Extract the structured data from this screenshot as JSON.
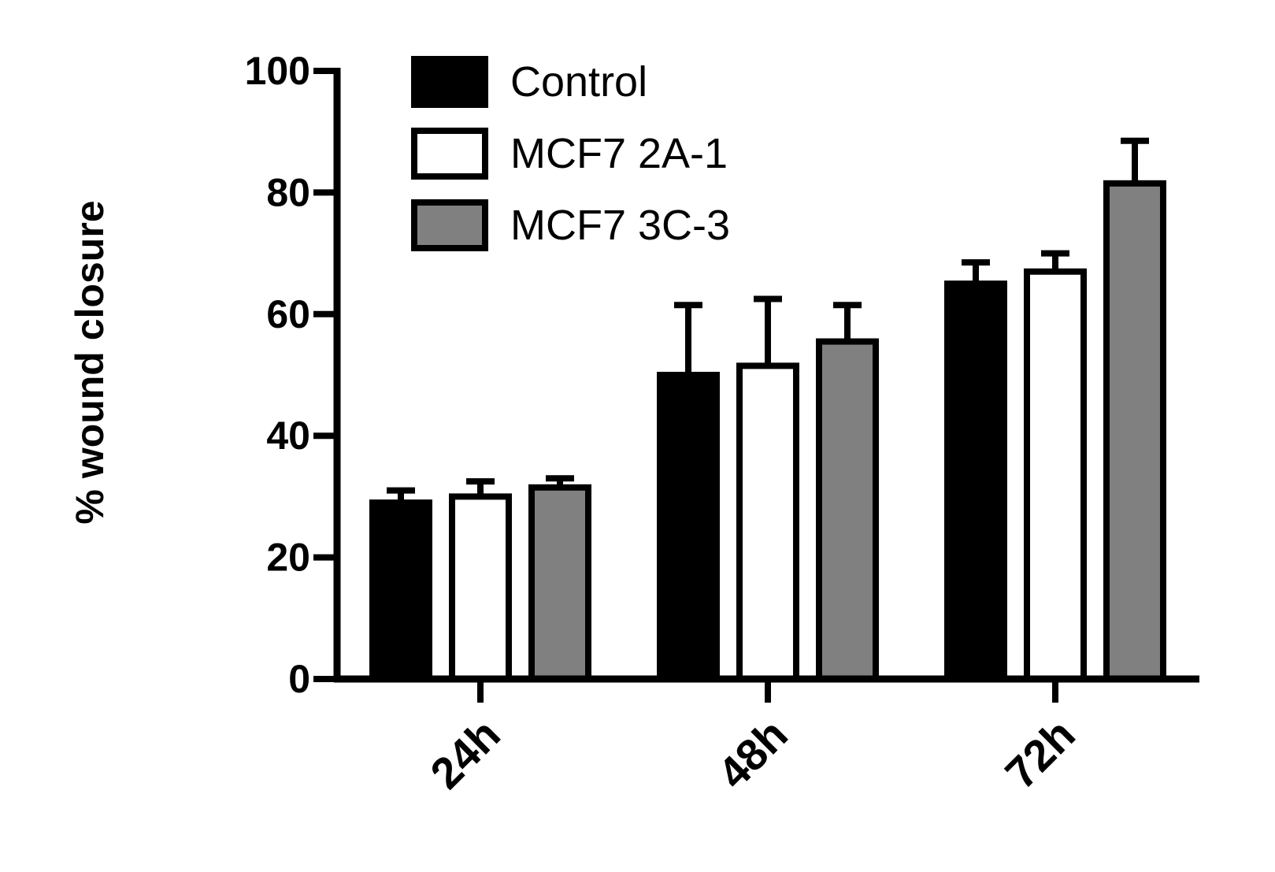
{
  "chart_data": {
    "type": "bar",
    "title": "",
    "xlabel": "",
    "ylabel": "% wound closure",
    "ylim": [
      0,
      100
    ],
    "yticks": [
      0,
      20,
      40,
      60,
      80,
      100
    ],
    "categories": [
      "24h",
      "48h",
      "72h"
    ],
    "series": [
      {
        "name": "Control",
        "color": "#000000",
        "values": [
          29,
          50,
          65
        ],
        "errors": [
          2,
          11.5,
          3.5
        ]
      },
      {
        "name": "MCF7 2A-1",
        "color": "#ffffff",
        "values": [
          30,
          51.5,
          67
        ],
        "errors": [
          2.5,
          11,
          3
        ]
      },
      {
        "name": "MCF7 3C-3",
        "color": "#808080",
        "values": [
          31.5,
          55.5,
          81.5
        ],
        "errors": [
          1.5,
          6,
          7
        ]
      }
    ],
    "legend": {
      "position": "top-left"
    },
    "grid": false
  }
}
